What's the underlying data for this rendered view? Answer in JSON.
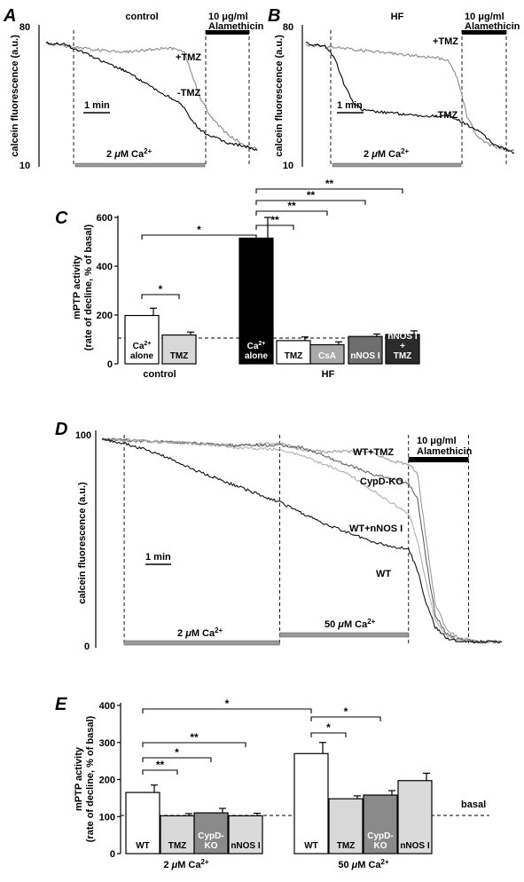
{
  "figure": {
    "panel_labels": {
      "A": "A",
      "B": "B",
      "C": "C",
      "D": "D",
      "E": "E"
    }
  },
  "chart_data": [
    {
      "panel": "A",
      "type": "line",
      "title": "control",
      "ylabel": "calcein fluorescence (a.u.)",
      "y_ticks": [
        "80",
        "10"
      ],
      "ylim": [
        10,
        80
      ],
      "xlim": [
        0,
        11
      ],
      "scale_bar": "1 min",
      "ca_label": "2 μM Ca2+",
      "ca_text": "2 ",
      "ca_mu": "μ",
      "ca_rest": "M Ca",
      "ca_sup": "2+",
      "ala_text1": "10 μg/ml",
      "ala_text2": "Alamethicin",
      "series": [
        {
          "name": "+TMZ",
          "color": "#8a8a8a",
          "x": [
            0,
            1,
            2,
            3,
            4,
            5,
            6,
            6.8,
            7.2,
            7.5,
            8,
            8.5,
            9,
            9.5,
            10,
            10.5,
            11
          ],
          "y": [
            73,
            71,
            70,
            69,
            68,
            69,
            70,
            70,
            68,
            60,
            45,
            36,
            30,
            25,
            22,
            19,
            18
          ]
        },
        {
          "name": "-TMZ",
          "color": "#000000",
          "x": [
            0,
            1,
            2,
            3,
            4,
            5,
            6,
            6.8,
            7.2,
            7.5,
            8,
            8.5,
            9,
            9.5,
            10,
            10.5,
            11
          ],
          "y": [
            73,
            72,
            68,
            63,
            59,
            53,
            47,
            43,
            39,
            34,
            28,
            25,
            23,
            21,
            20,
            19,
            17
          ]
        }
      ]
    },
    {
      "panel": "B",
      "type": "line",
      "title": "HF",
      "ylabel": "calcein fluorescence (a.u.)",
      "y_ticks": [
        "80",
        "10"
      ],
      "ylim": [
        10,
        80
      ],
      "xlim": [
        0,
        11
      ],
      "scale_bar": "1 min",
      "ca_label": "2 μM Ca2+",
      "ca_text": "2 ",
      "ca_mu": "μ",
      "ca_rest": "M Ca",
      "ca_sup": "2+",
      "ala_text1": "10 μg/ml",
      "ala_text2": "Alamethicin",
      "series": [
        {
          "name": "+TMZ",
          "color": "#8a8a8a",
          "x": [
            0,
            1,
            2,
            3,
            4,
            5,
            6,
            7,
            7.5,
            8,
            8.5,
            9,
            9.5,
            10,
            10.5,
            11
          ],
          "y": [
            72,
            71,
            70,
            69,
            68,
            67,
            66,
            65,
            64,
            55,
            35,
            25,
            21,
            19,
            18,
            17
          ]
        },
        {
          "name": "-TMZ",
          "color": "#000000",
          "x": [
            0,
            1,
            1.5,
            2,
            2.5,
            3,
            4,
            5,
            6,
            7,
            7.5,
            8,
            9,
            10,
            11
          ],
          "y": [
            73,
            71,
            66,
            52,
            42,
            38,
            37,
            36,
            35,
            35,
            35,
            33,
            28,
            20,
            16
          ]
        }
      ]
    },
    {
      "panel": "C",
      "type": "bar",
      "ylabel": "mPTP activity (rate of decline, % of basal)",
      "ylabel_line1": "mPTP activity",
      "ylabel_line2": "(rate of decline, % of basal)",
      "y_ticks": [
        "600",
        "400",
        "200",
        "0"
      ],
      "ylim": [
        0,
        600
      ],
      "groups": [
        "control",
        "HF"
      ],
      "categories": [
        "Ca2+ alone",
        "TMZ",
        "Ca2+ alone",
        "TMZ",
        "CsA",
        "nNOS I",
        "nNOS I + TMZ"
      ],
      "bar_labels": [
        {
          "text": "Ca",
          "sup": "2+",
          "text2": "alone"
        },
        {
          "text": "TMZ"
        },
        {
          "text": "Ca",
          "sup": "2+",
          "text2": "alone"
        },
        {
          "text": "TMZ"
        },
        {
          "text": "CsA"
        },
        {
          "text": "nNOS I"
        },
        {
          "text": "nNOS I",
          "text2": "+",
          "text3": "TMZ"
        }
      ],
      "values": [
        198,
        118,
        515,
        95,
        78,
        112,
        120
      ],
      "errors": [
        30,
        12,
        85,
        15,
        12,
        10,
        15
      ],
      "fills": [
        "#ffffff",
        "#d8d8d8",
        "#000000",
        "#ffffff",
        "#a9a9a9",
        "#6e6e6e",
        "#2b2b2b"
      ],
      "label_colors": [
        "#000000",
        "#000000",
        "#ffffff",
        "#000000",
        "#ffffff",
        "#ffffff",
        "#ffffff"
      ],
      "basal": 100,
      "significance": [
        {
          "from": 0,
          "to": 1,
          "text": "*"
        },
        {
          "from": 0,
          "to": 2,
          "text": "*"
        },
        {
          "from": 2,
          "to": 3,
          "text": "**"
        },
        {
          "from": 2,
          "to": 4,
          "text": "**"
        },
        {
          "from": 2,
          "to": 5,
          "text": "**"
        },
        {
          "from": 2,
          "to": 6,
          "text": "**"
        }
      ]
    },
    {
      "panel": "D",
      "type": "line",
      "ylabel": "calcein fluorescence (a.u.)",
      "y_ticks": [
        "100",
        "0"
      ],
      "ylim": [
        0,
        100
      ],
      "xlim": [
        0,
        18
      ],
      "scale_bar": "1 min",
      "ca_segments": [
        {
          "label": "2 μM Ca2+",
          "text": "2 ",
          "mu": "μ",
          "rest": "M Ca",
          "sup": "2+",
          "start": 1,
          "end": 8
        },
        {
          "label": "50 μM Ca2+",
          "text": "50 ",
          "mu": "μ",
          "rest": "M Ca",
          "sup": "2+",
          "start": 8,
          "end": 13.8
        }
      ],
      "ala_start": 13.8,
      "ala_end": 16.5,
      "ala_text1": "10 μg/ml",
      "ala_text2": "Alamethicin",
      "series": [
        {
          "name": "WT+TMZ",
          "color": "#9a9a9a",
          "x": [
            0,
            2,
            4,
            6,
            8,
            9,
            10,
            11,
            12,
            13,
            13.8,
            14.2,
            14.6,
            15,
            15.5,
            16,
            17,
            18
          ],
          "y": [
            98,
            97,
            96,
            95,
            96,
            93,
            92,
            92,
            92,
            88,
            86,
            82,
            50,
            20,
            8,
            4,
            2,
            2
          ]
        },
        {
          "name": "CypD-KO",
          "color": "#606060",
          "x": [
            0,
            2,
            4,
            6,
            8,
            9,
            10,
            11,
            12,
            13,
            13.8,
            14.2,
            14.6,
            15,
            15.5,
            16,
            17,
            18
          ],
          "y": [
            98,
            97,
            96,
            95,
            95,
            94,
            90,
            86,
            82,
            79,
            77,
            70,
            40,
            15,
            6,
            3,
            2,
            2
          ]
        },
        {
          "name": "WT+nNOS I",
          "color": "#b0b0b0",
          "x": [
            0,
            2,
            4,
            6,
            8,
            9,
            10,
            11,
            12,
            13,
            13.8,
            14.2,
            14.6,
            15,
            15.5,
            16,
            17,
            18
          ],
          "y": [
            98,
            97,
            96,
            94,
            93,
            90,
            86,
            82,
            75,
            68,
            63,
            50,
            30,
            12,
            5,
            3,
            2,
            2
          ]
        },
        {
          "name": "WT",
          "color": "#111111",
          "x": [
            0,
            1,
            2,
            3,
            4,
            5,
            6,
            7,
            8,
            9,
            10,
            11,
            12,
            13,
            13.8,
            14.2,
            14.6,
            15,
            15.5,
            16,
            17,
            18
          ],
          "y": [
            98,
            96,
            93,
            89,
            84,
            80,
            76,
            72,
            68,
            63,
            58,
            54,
            50,
            47,
            46,
            36,
            20,
            9,
            4,
            2,
            2,
            2
          ]
        }
      ]
    },
    {
      "panel": "E",
      "type": "bar",
      "ylabel": "mPTP activity (rate of decline, % of basal)",
      "ylabel_line1": "mPTP activity",
      "ylabel_line2": "(rate of decline, % of basal)",
      "y_ticks": [
        "400",
        "300",
        "200",
        "100",
        "0"
      ],
      "ylim": [
        0,
        400
      ],
      "basal_label": "basal",
      "groups": [
        {
          "text": "2 ",
          "mu": "μ",
          "rest": "M Ca",
          "sup": "2+",
          "label": "2 μM Ca2+"
        },
        {
          "text": "50 ",
          "mu": "μ",
          "rest": "M Ca",
          "sup": "2+",
          "label": "50 μM Ca2+"
        }
      ],
      "categories": [
        "WT",
        "TMZ",
        "CypD-KO",
        "nNOS I",
        "WT",
        "TMZ",
        "CypD-KO",
        "nNOS I"
      ],
      "bar_labels": [
        {
          "text": "WT"
        },
        {
          "text": "TMZ"
        },
        {
          "text": "CypD-",
          "text2": "KO"
        },
        {
          "text": "nNOS I"
        },
        {
          "text": "WT"
        },
        {
          "text": "TMZ"
        },
        {
          "text": "CypD-",
          "text2": "KO"
        },
        {
          "text": "nNOS I"
        }
      ],
      "values": [
        165,
        102,
        110,
        102,
        270,
        148,
        158,
        197
      ],
      "errors": [
        20,
        6,
        12,
        7,
        30,
        8,
        12,
        20
      ],
      "fills": [
        "#ffffff",
        "#d8d8d8",
        "#8a8a8a",
        "#dadada",
        "#ffffff",
        "#d8d8d8",
        "#8a8a8a",
        "#dadada"
      ],
      "label_colors": [
        "#000000",
        "#000000",
        "#ffffff",
        "#000000",
        "#000000",
        "#000000",
        "#ffffff",
        "#000000"
      ],
      "basal": 100,
      "significance": [
        {
          "from": 0,
          "to": 1,
          "text": "**"
        },
        {
          "from": 0,
          "to": 2,
          "text": "*"
        },
        {
          "from": 0,
          "to": 3,
          "text": "**"
        },
        {
          "from": 0,
          "to": 4,
          "text": "*"
        },
        {
          "from": 4,
          "to": 5,
          "text": "*"
        },
        {
          "from": 4,
          "to": 6,
          "text": "*"
        }
      ]
    }
  ]
}
